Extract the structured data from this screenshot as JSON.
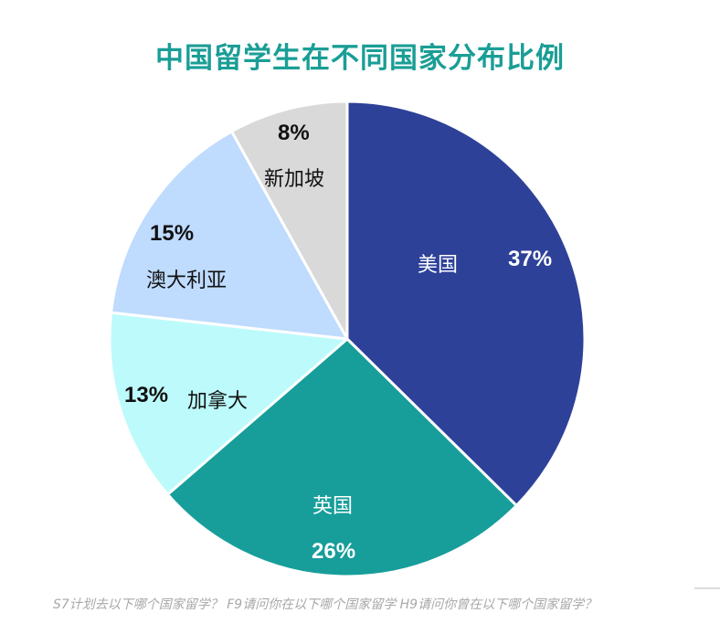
{
  "title": "中国留学生在不同国家分布比例",
  "footnote": "S7计划去以下哪个国家留学？ F9请问你在以下哪个国家留学 H9请问你曾在以下哪个国家留学？",
  "colors": {
    "title": "#1a9e96",
    "usa": "#2e4199",
    "uk": "#179e9a",
    "canada": "#bdfafb",
    "australia": "#bfdbfe",
    "singapore": "#d9d9d9"
  },
  "slices": [
    {
      "name": "美国",
      "pct": "37%",
      "value": 37,
      "color": "#2e4199"
    },
    {
      "name": "英国",
      "pct": "26%",
      "value": 26,
      "color": "#179e9a"
    },
    {
      "name": "加拿大",
      "pct": "13%",
      "value": 13,
      "color": "#bdfafb"
    },
    {
      "name": "澳大利亚",
      "pct": "15%",
      "value": 15,
      "color": "#bfdbfe"
    },
    {
      "name": "新加坡",
      "pct": "8%",
      "value": 8,
      "color": "#d9d9d9"
    }
  ],
  "chart_data": {
    "type": "pie",
    "title": "中国留学生在不同国家分布比例",
    "categories": [
      "美国",
      "英国",
      "加拿大",
      "澳大利亚",
      "新加坡"
    ],
    "values": [
      37,
      26,
      13,
      15,
      8
    ],
    "unit": "%",
    "start_angle": "12 o'clock, clockwise",
    "legend": "none (labels inside slices)",
    "footnote": "S7计划去以下哪个国家留学？ F9请问你在以下哪个国家留学 H9请问你曾在以下哪个国家留学？"
  }
}
